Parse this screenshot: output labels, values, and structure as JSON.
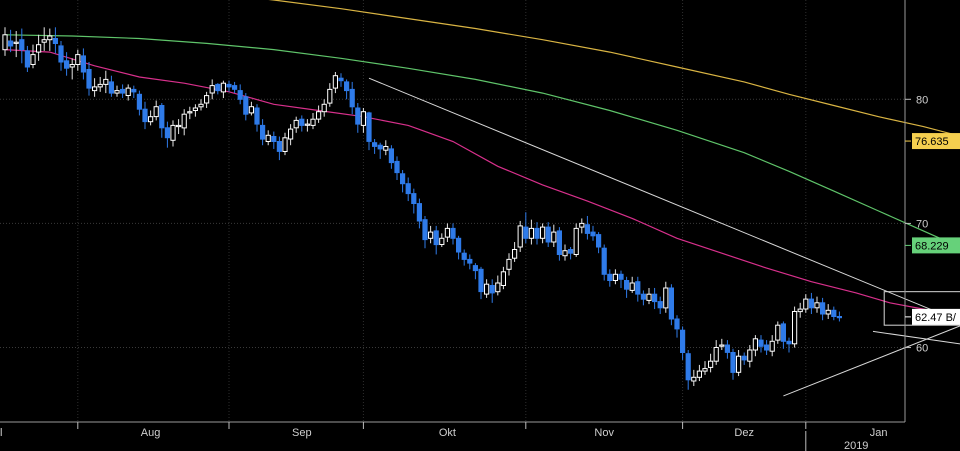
{
  "chart_data": {
    "type": "candlestick",
    "x_labels": [
      "l",
      "Aug",
      "Sep",
      "Okt",
      "Nov",
      "Dez",
      "Jan"
    ],
    "year_label": "2019",
    "y_ticks": [
      60,
      70,
      80
    ],
    "ylim": [
      54,
      88
    ],
    "grid": true,
    "colors": {
      "up": "#ffffff",
      "down": "#2f7be9",
      "ma_short": "#d8308c",
      "ma_mid": "#5fc46a",
      "ma_long": "#d9b443",
      "trendline": "#d8d8d8"
    },
    "value_tags": [
      {
        "label": "76.635",
        "value": 76.635,
        "color": "#f5cf4f"
      },
      {
        "label": "68.229",
        "value": 68.229,
        "color": "#66d17a"
      },
      {
        "label": "62.47 B/",
        "value": 62.47,
        "color": "#ffffff"
      }
    ],
    "moving_averages": [
      {
        "key": "ma_long",
        "points": [
          [
            0,
            89.6
          ],
          [
            12,
            89.3
          ],
          [
            24,
            89.0
          ],
          [
            36,
            88.6
          ],
          [
            48,
            88.0
          ],
          [
            60,
            87.3
          ],
          [
            72,
            86.5
          ],
          [
            84,
            85.7
          ],
          [
            96,
            84.8
          ],
          [
            108,
            83.8
          ],
          [
            120,
            82.6
          ],
          [
            132,
            81.4
          ],
          [
            140,
            80.4
          ],
          [
            148,
            79.5
          ],
          [
            156,
            78.6
          ],
          [
            164,
            77.8
          ],
          [
            170,
            77.1
          ]
        ]
      },
      {
        "key": "ma_mid",
        "points": [
          [
            0,
            85.2
          ],
          [
            12,
            85.1
          ],
          [
            24,
            84.9
          ],
          [
            36,
            84.5
          ],
          [
            48,
            84.0
          ],
          [
            60,
            83.3
          ],
          [
            72,
            82.5
          ],
          [
            84,
            81.6
          ],
          [
            96,
            80.5
          ],
          [
            108,
            79.1
          ],
          [
            120,
            77.5
          ],
          [
            132,
            75.7
          ],
          [
            140,
            74.2
          ],
          [
            148,
            72.6
          ],
          [
            156,
            71.0
          ],
          [
            164,
            69.4
          ],
          [
            170,
            68.2
          ]
        ]
      },
      {
        "key": "ma_short",
        "points": [
          [
            0,
            84.0
          ],
          [
            8,
            83.8
          ],
          [
            16,
            82.7
          ],
          [
            24,
            81.8
          ],
          [
            32,
            81.3
          ],
          [
            40,
            80.6
          ],
          [
            48,
            79.6
          ],
          [
            56,
            79.1
          ],
          [
            64,
            78.6
          ],
          [
            72,
            77.9
          ],
          [
            80,
            76.6
          ],
          [
            88,
            74.6
          ],
          [
            96,
            73.1
          ],
          [
            104,
            71.8
          ],
          [
            112,
            70.4
          ],
          [
            120,
            68.8
          ],
          [
            128,
            67.6
          ],
          [
            136,
            66.4
          ],
          [
            144,
            65.3
          ],
          [
            152,
            64.4
          ],
          [
            158,
            63.6
          ],
          [
            164,
            63.1
          ],
          [
            170,
            62.6
          ]
        ]
      }
    ],
    "trendlines": [
      [
        [
          65,
          81.7
        ],
        [
          170,
          62.2
        ]
      ],
      [
        [
          139,
          56.1
        ],
        [
          172,
          62.0
        ]
      ],
      [
        [
          155,
          61.3
        ],
        [
          172,
          60.2
        ]
      ]
    ],
    "boxes": [
      {
        "x0": 157,
        "x1": 173,
        "y_top": 64.5,
        "y_bottom": 61.8
      }
    ],
    "candles": [
      [
        84.0,
        85.2,
        83.5,
        85.8
      ],
      [
        84.7,
        84.3,
        83.8,
        85.6
      ],
      [
        84.5,
        84.6,
        83.4,
        85.5
      ],
      [
        84.8,
        84.0,
        82.9,
        85.7
      ],
      [
        83.9,
        82.6,
        82.2,
        84.3
      ],
      [
        82.8,
        83.6,
        82.5,
        84.4
      ],
      [
        83.8,
        84.4,
        83.1,
        85.2
      ],
      [
        84.6,
        84.8,
        83.9,
        85.8
      ],
      [
        84.8,
        85.1,
        83.9,
        85.7
      ],
      [
        84.9,
        84.5,
        83.7,
        85.8
      ],
      [
        84.3,
        83.0,
        82.3,
        84.7
      ],
      [
        83.1,
        82.5,
        81.9,
        83.8
      ],
      [
        82.6,
        82.8,
        81.6,
        83.3
      ],
      [
        82.8,
        83.6,
        82.3,
        84.0
      ],
      [
        83.5,
        82.2,
        81.6,
        84.1
      ],
      [
        82.4,
        80.9,
        80.3,
        83.0
      ],
      [
        80.7,
        81.0,
        80.2,
        81.7
      ],
      [
        81.0,
        81.2,
        80.6,
        81.8
      ],
      [
        81.2,
        81.6,
        80.5,
        82.3
      ],
      [
        81.4,
        80.5,
        80.2,
        81.9
      ],
      [
        80.5,
        80.7,
        80.2,
        81.1
      ],
      [
        80.8,
        80.5,
        80.1,
        81.2
      ],
      [
        80.3,
        80.9,
        79.9,
        81.2
      ],
      [
        80.8,
        80.6,
        80.1,
        81.1
      ],
      [
        80.4,
        79.2,
        78.7,
        80.7
      ],
      [
        79.2,
        78.2,
        77.6,
        79.8
      ],
      [
        78.2,
        78.6,
        77.9,
        79.1
      ],
      [
        78.6,
        79.4,
        78.3,
        79.9
      ],
      [
        79.5,
        77.7,
        76.9,
        79.7
      ],
      [
        77.7,
        76.9,
        76.1,
        78.2
      ],
      [
        76.7,
        77.9,
        76.2,
        78.3
      ],
      [
        77.9,
        77.9,
        77.2,
        78.4
      ],
      [
        77.7,
        78.8,
        77.1,
        79.2
      ],
      [
        78.9,
        79.0,
        78.4,
        79.4
      ],
      [
        79.1,
        79.3,
        78.6,
        79.6
      ],
      [
        79.4,
        79.6,
        79.1,
        80.0
      ],
      [
        79.7,
        80.3,
        79.3,
        80.6
      ],
      [
        80.5,
        81.1,
        80.0,
        81.6
      ],
      [
        81.2,
        80.7,
        80.4,
        81.3
      ],
      [
        80.6,
        81.3,
        80.1,
        81.5
      ],
      [
        81.2,
        81.0,
        80.6,
        81.5
      ],
      [
        81.1,
        80.8,
        80.5,
        81.4
      ],
      [
        80.7,
        80.0,
        79.6,
        81.2
      ],
      [
        80.2,
        78.8,
        78.3,
        80.5
      ],
      [
        78.9,
        79.4,
        78.7,
        79.8
      ],
      [
        79.3,
        78.0,
        77.4,
        79.6
      ],
      [
        77.9,
        76.8,
        76.3,
        78.4
      ],
      [
        76.6,
        77.1,
        76.3,
        77.5
      ],
      [
        77.0,
        76.6,
        76.0,
        77.4
      ],
      [
        76.6,
        75.8,
        75.1,
        77.0
      ],
      [
        75.8,
        76.9,
        75.5,
        77.3
      ],
      [
        76.8,
        77.6,
        76.3,
        78.0
      ],
      [
        77.7,
        78.3,
        77.3,
        78.6
      ],
      [
        78.4,
        77.9,
        77.4,
        78.7
      ],
      [
        77.9,
        78.0,
        77.4,
        78.4
      ],
      [
        77.9,
        78.4,
        77.6,
        78.9
      ],
      [
        78.4,
        79.0,
        78.1,
        79.5
      ],
      [
        79.0,
        79.6,
        78.6,
        80.0
      ],
      [
        79.7,
        80.8,
        79.4,
        81.3
      ],
      [
        80.9,
        81.9,
        80.5,
        82.2
      ],
      [
        81.7,
        81.5,
        81.0,
        82.1
      ],
      [
        81.4,
        80.7,
        80.0,
        81.6
      ],
      [
        80.8,
        79.4,
        78.8,
        81.4
      ],
      [
        79.3,
        78.0,
        77.3,
        79.7
      ],
      [
        77.9,
        79.0,
        77.3,
        79.3
      ],
      [
        78.9,
        76.6,
        75.9,
        79.0
      ],
      [
        76.5,
        76.2,
        75.6,
        76.8
      ],
      [
        76.3,
        76.0,
        75.2,
        76.5
      ],
      [
        75.9,
        76.2,
        75.5,
        76.7
      ],
      [
        76.0,
        74.9,
        74.4,
        76.3
      ],
      [
        75.0,
        74.1,
        73.5,
        75.4
      ],
      [
        74.0,
        73.2,
        72.5,
        74.3
      ],
      [
        73.2,
        72.4,
        71.8,
        73.7
      ],
      [
        72.4,
        71.6,
        70.8,
        72.8
      ],
      [
        71.6,
        70.2,
        69.6,
        72.0
      ],
      [
        70.3,
        68.7,
        68.0,
        70.6
      ],
      [
        68.8,
        69.3,
        68.4,
        69.8
      ],
      [
        69.4,
        68.3,
        67.5,
        69.8
      ],
      [
        68.3,
        68.8,
        68.1,
        69.2
      ],
      [
        68.9,
        69.6,
        68.5,
        70.0
      ],
      [
        69.6,
        68.8,
        68.3,
        70.0
      ],
      [
        68.8,
        67.7,
        67.1,
        69.0
      ],
      [
        67.6,
        67.1,
        66.6,
        67.9
      ],
      [
        67.1,
        66.8,
        66.3,
        67.5
      ],
      [
        66.6,
        66.2,
        65.5,
        66.8
      ],
      [
        66.3,
        64.5,
        63.9,
        66.5
      ],
      [
        64.3,
        65.1,
        64.0,
        65.5
      ],
      [
        65.0,
        64.4,
        63.6,
        65.5
      ],
      [
        64.5,
        65.2,
        64.2,
        65.8
      ],
      [
        65.0,
        66.1,
        64.7,
        66.5
      ],
      [
        66.3,
        67.1,
        65.8,
        67.6
      ],
      [
        67.2,
        67.9,
        66.9,
        68.5
      ],
      [
        68.1,
        69.8,
        67.7,
        70.2
      ],
      [
        69.7,
        68.8,
        68.4,
        70.9
      ],
      [
        68.8,
        69.6,
        68.3,
        70.3
      ],
      [
        69.6,
        68.8,
        68.3,
        70.1
      ],
      [
        68.8,
        69.7,
        68.4,
        70.0
      ],
      [
        69.7,
        68.5,
        68.1,
        70.1
      ],
      [
        68.5,
        69.3,
        68.1,
        69.9
      ],
      [
        69.4,
        67.5,
        67.0,
        69.7
      ],
      [
        67.4,
        67.8,
        67.0,
        68.3
      ],
      [
        67.9,
        67.6,
        67.1,
        68.1
      ],
      [
        67.5,
        69.6,
        67.3,
        70.0
      ],
      [
        69.7,
        70.0,
        69.2,
        70.4
      ],
      [
        69.9,
        69.2,
        68.7,
        70.6
      ],
      [
        69.3,
        69.0,
        68.6,
        69.8
      ],
      [
        69.1,
        68.1,
        67.6,
        69.3
      ],
      [
        68.0,
        65.9,
        65.4,
        68.3
      ],
      [
        65.9,
        65.4,
        64.9,
        66.3
      ],
      [
        65.4,
        65.9,
        65.1,
        66.3
      ],
      [
        65.9,
        65.5,
        64.8,
        66.2
      ],
      [
        65.4,
        64.7,
        64.0,
        65.7
      ],
      [
        64.6,
        65.2,
        64.4,
        65.7
      ],
      [
        65.3,
        64.3,
        63.7,
        65.7
      ],
      [
        64.3,
        63.9,
        63.4,
        64.6
      ],
      [
        63.8,
        64.3,
        63.5,
        64.8
      ],
      [
        64.3,
        63.7,
        63.1,
        64.8
      ],
      [
        63.7,
        63.2,
        62.7,
        64.1
      ],
      [
        63.2,
        64.8,
        62.8,
        65.3
      ],
      [
        64.8,
        62.3,
        61.8,
        65.1
      ],
      [
        62.3,
        61.5,
        60.8,
        62.6
      ],
      [
        61.4,
        59.6,
        59.0,
        61.7
      ],
      [
        59.5,
        57.4,
        56.6,
        59.8
      ],
      [
        57.3,
        57.6,
        56.9,
        58.2
      ],
      [
        57.6,
        58.1,
        57.3,
        58.6
      ],
      [
        58.1,
        58.3,
        57.8,
        58.9
      ],
      [
        58.4,
        58.9,
        58.0,
        59.5
      ],
      [
        58.9,
        60.0,
        58.6,
        60.6
      ],
      [
        60.1,
        60.2,
        59.8,
        60.7
      ],
      [
        60.2,
        59.6,
        59.1,
        60.6
      ],
      [
        59.6,
        58.0,
        57.4,
        59.9
      ],
      [
        58.0,
        59.3,
        57.7,
        59.8
      ],
      [
        59.3,
        59.0,
        58.6,
        59.6
      ],
      [
        58.9,
        59.8,
        58.4,
        60.2
      ],
      [
        59.8,
        60.7,
        59.3,
        61.0
      ],
      [
        60.6,
        60.1,
        59.6,
        61.0
      ],
      [
        60.2,
        59.8,
        59.4,
        60.6
      ],
      [
        59.7,
        60.5,
        59.3,
        61.0
      ],
      [
        60.6,
        61.8,
        60.3,
        62.1
      ],
      [
        61.9,
        60.5,
        59.9,
        62.1
      ],
      [
        60.5,
        60.3,
        59.6,
        60.8
      ],
      [
        60.3,
        62.9,
        60.0,
        63.3
      ],
      [
        62.9,
        63.1,
        62.4,
        63.6
      ],
      [
        63.1,
        63.9,
        62.8,
        64.3
      ],
      [
        63.9,
        63.2,
        62.7,
        64.4
      ],
      [
        63.2,
        63.6,
        62.8,
        64.1
      ],
      [
        63.6,
        62.7,
        62.2,
        64.0
      ],
      [
        62.7,
        63.0,
        62.3,
        63.5
      ],
      [
        63.0,
        62.5,
        62.2,
        63.3
      ],
      [
        62.5,
        62.47,
        62.1,
        62.9
      ]
    ]
  }
}
